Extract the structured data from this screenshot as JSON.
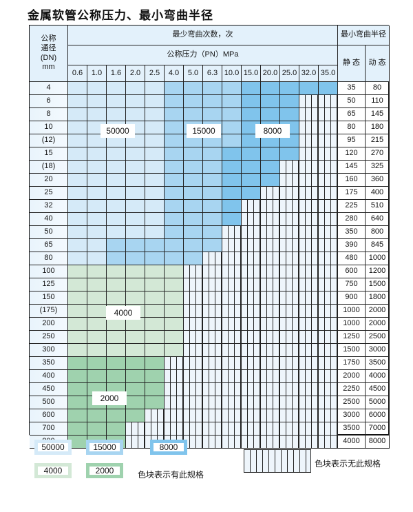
{
  "title": "金属软管公称压力、最小弯曲半径",
  "header": {
    "dn_label": "公称\n通径\n(DN)\nmm",
    "bend_count": "最少弯曲次数，次",
    "pressure": "公称压力（PN）MPa",
    "min_radius": "最小弯曲半径",
    "static": "静 态",
    "dynamic": "动 态",
    "pressures": [
      "0.6",
      "1.0",
      "1.6",
      "2.0",
      "2.5",
      "4.0",
      "5.0",
      "6.3",
      "10.0",
      "15.0",
      "20.0",
      "25.0",
      "32.0",
      "35.0"
    ]
  },
  "colors": {
    "50000": "#d5eaf8",
    "15000": "#a8d5f1",
    "8000": "#80c4ec",
    "4000": "#d3e8d6",
    "2000": "#9fd2ae",
    "none": "#eef5fb"
  },
  "rows": [
    {
      "dn": "4",
      "static": "35",
      "dynamic": "80",
      "segments": [
        [
          50000,
          5
        ],
        [
          15000,
          4
        ],
        [
          8000,
          5
        ]
      ]
    },
    {
      "dn": "6",
      "static": "50",
      "dynamic": "110",
      "segments": [
        [
          50000,
          5
        ],
        [
          15000,
          4
        ],
        [
          8000,
          3
        ],
        [
          null,
          2
        ]
      ]
    },
    {
      "dn": "8",
      "static": "65",
      "dynamic": "145",
      "segments": [
        [
          50000,
          5
        ],
        [
          15000,
          4
        ],
        [
          8000,
          3
        ],
        [
          null,
          2
        ]
      ]
    },
    {
      "dn": "10",
      "static": "80",
      "dynamic": "180",
      "segments": [
        [
          50000,
          5
        ],
        [
          15000,
          4
        ],
        [
          8000,
          3
        ],
        [
          null,
          2
        ]
      ]
    },
    {
      "dn": "(12)",
      "static": "95",
      "dynamic": "215",
      "segments": [
        [
          50000,
          5
        ],
        [
          15000,
          4
        ],
        [
          8000,
          3
        ],
        [
          null,
          2
        ]
      ]
    },
    {
      "dn": "15",
      "static": "120",
      "dynamic": "270",
      "segments": [
        [
          50000,
          5
        ],
        [
          15000,
          3
        ],
        [
          8000,
          4
        ],
        [
          null,
          2
        ]
      ]
    },
    {
      "dn": "(18)",
      "static": "145",
      "dynamic": "325",
      "segments": [
        [
          50000,
          5
        ],
        [
          15000,
          3
        ],
        [
          8000,
          3
        ],
        [
          null,
          3
        ]
      ]
    },
    {
      "dn": "20",
      "static": "160",
      "dynamic": "360",
      "segments": [
        [
          50000,
          5
        ],
        [
          15000,
          3
        ],
        [
          8000,
          3
        ],
        [
          null,
          3
        ]
      ]
    },
    {
      "dn": "25",
      "static": "175",
      "dynamic": "400",
      "segments": [
        [
          50000,
          5
        ],
        [
          15000,
          3
        ],
        [
          8000,
          2
        ],
        [
          null,
          4
        ]
      ]
    },
    {
      "dn": "32",
      "static": "225",
      "dynamic": "510",
      "segments": [
        [
          50000,
          5
        ],
        [
          15000,
          3
        ],
        [
          8000,
          1
        ],
        [
          null,
          5
        ]
      ]
    },
    {
      "dn": "40",
      "static": "280",
      "dynamic": "640",
      "segments": [
        [
          50000,
          5
        ],
        [
          15000,
          3
        ],
        [
          8000,
          1
        ],
        [
          null,
          5
        ]
      ]
    },
    {
      "dn": "50",
      "static": "350",
      "dynamic": "800",
      "segments": [
        [
          50000,
          5
        ],
        [
          15000,
          3
        ],
        [
          null,
          6
        ]
      ]
    },
    {
      "dn": "65",
      "static": "390",
      "dynamic": "845",
      "segments": [
        [
          50000,
          2
        ],
        [
          15000,
          6
        ],
        [
          null,
          6
        ]
      ]
    },
    {
      "dn": "80",
      "static": "480",
      "dynamic": "1000",
      "segments": [
        [
          50000,
          2
        ],
        [
          15000,
          5
        ],
        [
          null,
          7
        ]
      ]
    },
    {
      "dn": "100",
      "static": "600",
      "dynamic": "1200",
      "segments": [
        [
          4000,
          6
        ],
        [
          null,
          8
        ]
      ]
    },
    {
      "dn": "125",
      "static": "750",
      "dynamic": "1500",
      "segments": [
        [
          4000,
          6
        ],
        [
          null,
          8
        ]
      ]
    },
    {
      "dn": "150",
      "static": "900",
      "dynamic": "1800",
      "segments": [
        [
          4000,
          6
        ],
        [
          null,
          8
        ]
      ]
    },
    {
      "dn": "(175)",
      "static": "1000",
      "dynamic": "2000",
      "segments": [
        [
          4000,
          6
        ],
        [
          null,
          8
        ]
      ]
    },
    {
      "dn": "200",
      "static": "1000",
      "dynamic": "2000",
      "segments": [
        [
          4000,
          6
        ],
        [
          null,
          8
        ]
      ]
    },
    {
      "dn": "250",
      "static": "1250",
      "dynamic": "2500",
      "segments": [
        [
          4000,
          6
        ],
        [
          null,
          8
        ]
      ]
    },
    {
      "dn": "300",
      "static": "1500",
      "dynamic": "3000",
      "segments": [
        [
          4000,
          6
        ],
        [
          null,
          8
        ]
      ]
    },
    {
      "dn": "350",
      "static": "1750",
      "dynamic": "3500",
      "segments": [
        [
          2000,
          5
        ],
        [
          null,
          9
        ]
      ]
    },
    {
      "dn": "400",
      "static": "2000",
      "dynamic": "4000",
      "segments": [
        [
          2000,
          5
        ],
        [
          null,
          9
        ]
      ]
    },
    {
      "dn": "450",
      "static": "2250",
      "dynamic": "4500",
      "segments": [
        [
          2000,
          5
        ],
        [
          null,
          9
        ]
      ]
    },
    {
      "dn": "500",
      "static": "2500",
      "dynamic": "5000",
      "segments": [
        [
          2000,
          5
        ],
        [
          null,
          9
        ]
      ]
    },
    {
      "dn": "600",
      "static": "3000",
      "dynamic": "6000",
      "segments": [
        [
          2000,
          4
        ],
        [
          null,
          10
        ]
      ]
    },
    {
      "dn": "700",
      "static": "3500",
      "dynamic": "7000",
      "segments": [
        [
          2000,
          3
        ],
        [
          null,
          11
        ]
      ]
    },
    {
      "dn": "800",
      "static": "4000",
      "dynamic": "8000",
      "segments": [
        [
          2000,
          3
        ],
        [
          null,
          11
        ]
      ]
    }
  ],
  "region_labels": {
    "a": "50000",
    "b": "15000",
    "c": "8000",
    "d": "4000",
    "e": "2000"
  },
  "legend": {
    "items": [
      "50000",
      "15000",
      "8000",
      "4000",
      "2000"
    ],
    "has_spec": "色块表示有此规格",
    "no_spec": "色块表示无此规格"
  }
}
